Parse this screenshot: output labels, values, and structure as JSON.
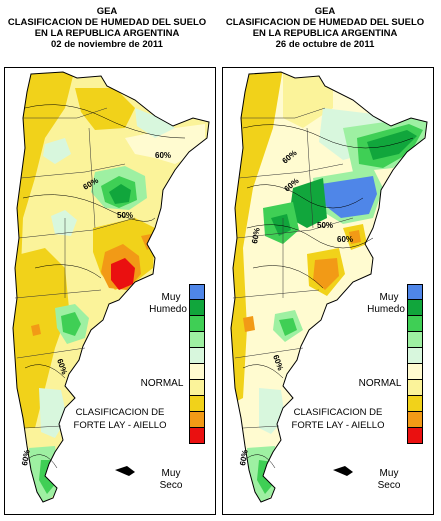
{
  "colors": {
    "muy_humedo": "#4f86e8",
    "humedo_3": "#11a63c",
    "humedo_2": "#3fcf55",
    "humedo_1": "#9ef0a2",
    "normal_humedo": "#d8f7dd",
    "normal_seco": "#fffbd0",
    "seco_1": "#fbf39a",
    "seco_2": "#f1d21a",
    "seco_3": "#f29a16",
    "muy_seco": "#ea1010"
  },
  "panels": [
    {
      "title_1": "GEA",
      "title_2": "CLASIFICACION DE HUMEDAD DEL SUELO",
      "title_3": "EN LA REPUBLICA ARGENTINA",
      "date": "02 de noviembre de 2011",
      "contour_labels": [
        "60%",
        "60%",
        "50%",
        "60%",
        "60%"
      ],
      "legend": {
        "muy_top": "Muy",
        "humedo": "Humedo",
        "normal": "NORMAL",
        "method_1": "CLASIFICACION DE",
        "method_2": "FORTE LAY - AIELLO",
        "muy_bottom": "Muy",
        "seco": "Seco"
      }
    },
    {
      "title_1": "GEA",
      "title_2": "CLASIFICACION DE HUMEDAD DEL SUELO",
      "title_3": "EN LA REPUBLICA ARGENTINA",
      "date": "26 de octubre de 2011",
      "contour_labels": [
        "60%",
        "60%",
        "60%",
        "50%",
        "60%",
        "60%",
        "60%"
      ],
      "legend": {
        "muy_top": "Muy",
        "humedo": "Humedo",
        "normal": "NORMAL",
        "method_1": "CLASIFICACION DE",
        "method_2": "FORTE LAY - AIELLO",
        "muy_bottom": "Muy",
        "seco": "Seco"
      }
    }
  ]
}
